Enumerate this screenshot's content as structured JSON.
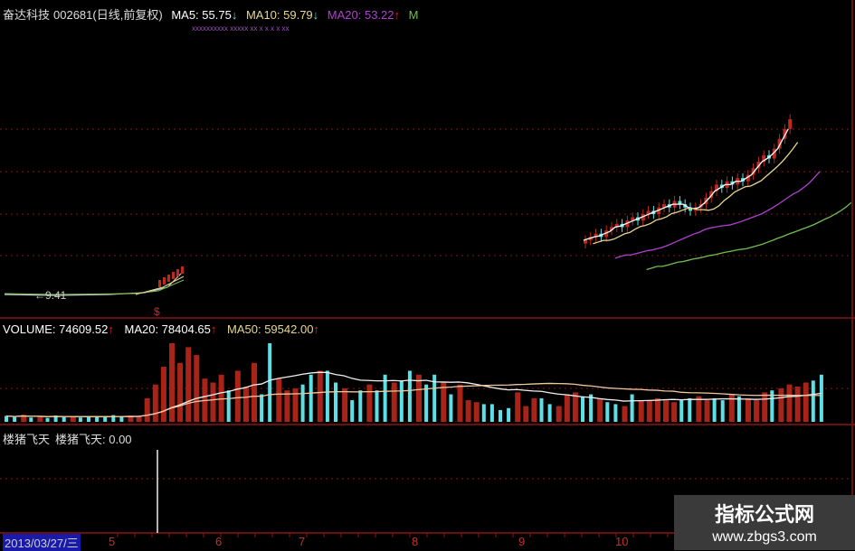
{
  "header": {
    "stock_name": "奋达科技",
    "stock_code": "002681",
    "period": "(日线,前复权)",
    "ma5_label": "MA5: 55.75",
    "ma5_arrow": "↓",
    "ma10_label": "MA10: 59.79",
    "ma10_arrow": "↓",
    "ma20_label": "MA20: 53.22",
    "ma20_arrow": "↑",
    "ma_more": "M"
  },
  "price_panel": {
    "low_marker": "←9.41",
    "signal_mark": "$"
  },
  "volume_panel": {
    "volume_label": "VOLUME: 74609.52",
    "volume_arrow": "↑",
    "ma20_label": "MA20: 78404.65",
    "ma20_arrow": "↑",
    "ma50_label": "MA50: 59542.00",
    "ma50_arrow": "↑"
  },
  "indicator_panel": {
    "name": "楼猪飞天",
    "value_label": "楼猪飞天: 0.00"
  },
  "xaxis": {
    "current_date": "2013/03/27/三",
    "month_ticks": [
      "5",
      "6",
      "7",
      "8",
      "9",
      "10"
    ]
  },
  "watermark": {
    "title": "指标公式网",
    "url": "www.zbgs3.com"
  },
  "colors": {
    "up": "#c0281e",
    "down": "#5ce0e6",
    "grid": "#8a1414",
    "ma5": "#ffffff",
    "ma10": "#e8d890",
    "ma20": "#b040d0",
    "ma50": "#70c050"
  },
  "chart_data": {
    "type": "bar",
    "title": "",
    "volume": {
      "values": [
        15000,
        12000,
        18000,
        11000,
        14000,
        10000,
        16000,
        12000,
        13000,
        11000,
        15000,
        14000,
        12000,
        17000,
        13000,
        16000,
        15000,
        60000,
        95000,
        140000,
        200000,
        150000,
        190000,
        170000,
        110000,
        100000,
        120000,
        80000,
        130000,
        90000,
        150000,
        70000,
        200000,
        110000,
        80000,
        85000,
        95000,
        120000,
        130000,
        130000,
        100000,
        85000,
        55000,
        80000,
        95000,
        80000,
        120000,
        100000,
        105000,
        130000,
        120000,
        95000,
        120000,
        100000,
        70000,
        95000,
        55000,
        50000,
        45000,
        45000,
        30000,
        35000,
        75000,
        40000,
        60000,
        60000,
        45000,
        40000,
        70000,
        75000,
        65000,
        70000,
        60000,
        50000,
        45000,
        40000,
        70000,
        55000,
        55000,
        60000,
        55000,
        50000,
        55000,
        60000,
        65000,
        55000,
        60000,
        55000,
        70000,
        65000,
        60000,
        55000,
        75000,
        80000,
        85000,
        95000,
        90000,
        100000,
        105000,
        120000
      ],
      "direction": "ddududddudddddduuuuuuuuuuuuduuudduuuddudduddudduddudduduuudddduuudduuuddudduduuuuudduudduduuuduuuuddu",
      "ma20_current": 78404.65,
      "ma50_current": 59542.0
    },
    "price": {
      "ma5": 55.75,
      "ma10": 59.79,
      "ma20": 53.22,
      "low": 9.41,
      "closes": [
        26,
        27,
        28,
        27,
        29,
        30,
        31,
        30,
        32,
        33,
        32,
        34,
        35,
        34,
        36,
        37,
        36,
        38,
        37,
        36,
        35,
        36,
        37,
        39,
        41,
        43,
        42,
        44,
        43,
        45,
        44,
        46,
        48,
        50,
        52,
        51,
        54,
        57,
        60,
        63
      ]
    },
    "indicator": {
      "value": 0.0
    }
  }
}
